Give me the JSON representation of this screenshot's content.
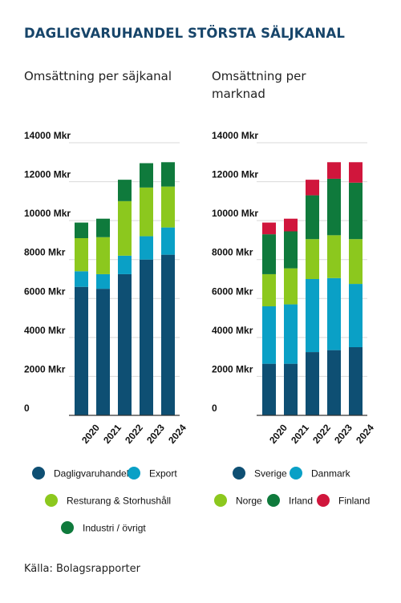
{
  "title": "DAGLIGVARUHANDEL STÖRSTA SÄLJKANAL",
  "source": "Källa: Bolagsrapporter",
  "colors": {
    "dark_blue": "#0e4f73",
    "light_blue": "#0aa0c6",
    "lime": "#8cc81e",
    "green": "#0f7a3c",
    "red": "#d0163c"
  },
  "chart_data": [
    {
      "type": "bar",
      "stacked": true,
      "subtitle": "Omsättning per säjkanal",
      "categories": [
        "2020",
        "2021",
        "2022",
        "2023",
        "2024"
      ],
      "y_ticks": [
        "0",
        "2000 Mkr",
        "4000 Mkr",
        "6000 Mkr",
        "8000 Mkr",
        "10000 Mkr",
        "12000 Mkr",
        "14000 Mkr"
      ],
      "ylim": [
        0,
        14000
      ],
      "grid": true,
      "legend_position": "bottom",
      "series": [
        {
          "name": "Dagligvaruhandel",
          "color": "#0e4f73",
          "values": [
            6600,
            6500,
            7250,
            8000,
            8250
          ]
        },
        {
          "name": "Export",
          "color": "#0aa0c6",
          "values": [
            800,
            750,
            950,
            1200,
            1400
          ]
        },
        {
          "name": "Resturang & Storhushåll",
          "color": "#8cc81e",
          "values": [
            1700,
            1900,
            2800,
            2500,
            2100
          ]
        },
        {
          "name": "Industri / övrigt",
          "color": "#0f7a3c",
          "values": [
            800,
            950,
            1100,
            1250,
            1250
          ]
        }
      ]
    },
    {
      "type": "bar",
      "stacked": true,
      "subtitle": "Omsättning per marknad",
      "categories": [
        "2020",
        "2021",
        "2022",
        "2023",
        "2024"
      ],
      "y_ticks": [
        "0",
        "2000 Mkr",
        "4000 Mkr",
        "6000 Mkr",
        "8000 Mkr",
        "10000 Mkr",
        "12000 Mkr",
        "14000 Mkr"
      ],
      "ylim": [
        0,
        14000
      ],
      "grid": true,
      "legend_position": "bottom",
      "series": [
        {
          "name": "Sverige",
          "color": "#0e4f73",
          "values": [
            2650,
            2650,
            3250,
            3350,
            3500
          ]
        },
        {
          "name": "Danmark",
          "color": "#0aa0c6",
          "values": [
            2950,
            3050,
            3750,
            3700,
            3250
          ]
        },
        {
          "name": "Norge",
          "color": "#8cc81e",
          "values": [
            1650,
            1850,
            2050,
            2200,
            2300
          ]
        },
        {
          "name": "Irland",
          "color": "#0f7a3c",
          "values": [
            2050,
            1900,
            2250,
            2900,
            2900
          ]
        },
        {
          "name": "Finland",
          "color": "#d0163c",
          "values": [
            600,
            650,
            800,
            850,
            1050
          ]
        }
      ]
    }
  ]
}
